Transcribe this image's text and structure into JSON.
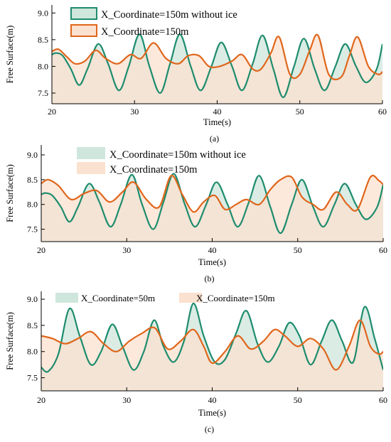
{
  "colors": {
    "green": "#1E8C6E",
    "orange": "#E0661C",
    "green_fill": "#CFE6DC",
    "orange_fill": "#FBE1CF",
    "overlap_fill": "#DAD8C8"
  },
  "chart_data": [
    {
      "type": "area",
      "panel_label": "(a)",
      "xlabel": "Time(s)",
      "ylabel": "Free Surface(m)",
      "xlim": [
        20,
        60
      ],
      "ylim": [
        7.3,
        9.15
      ],
      "xticks": [
        20,
        30,
        40,
        50,
        60
      ],
      "yticks": [
        7.5,
        8.0,
        8.5,
        9.0
      ],
      "xtick_labels": [
        "20",
        "30",
        "40",
        "50",
        "60"
      ],
      "ytick_labels": [
        "7.5",
        "8.0",
        "8.5",
        "9.0"
      ],
      "grid": false,
      "legend_position": "top-left",
      "series": [
        {
          "name": "X_Coordinate=150m without ice",
          "color": "#1E8C6E",
          "fill": "#CFE6DC",
          "x": [
            20,
            20.5,
            21.3,
            22.3,
            23.3,
            24.3,
            25.6,
            26.8,
            28.1,
            29.3,
            30.6,
            31.8,
            33.1,
            34.3,
            35.5,
            36.8,
            38.0,
            39.3,
            40.5,
            41.8,
            43.0,
            44.3,
            45.5,
            46.8,
            48.0,
            49.3,
            50.5,
            51.8,
            53.0,
            54.3,
            55.5,
            56.8,
            58.0,
            59.3,
            60
          ],
          "y": [
            8.22,
            8.25,
            8.2,
            7.95,
            7.65,
            7.95,
            8.42,
            8.05,
            7.55,
            8.0,
            8.6,
            8.0,
            7.5,
            8.05,
            8.6,
            8.0,
            7.55,
            8.0,
            8.45,
            8.0,
            7.55,
            8.05,
            8.58,
            7.95,
            7.42,
            8.0,
            8.52,
            7.95,
            7.55,
            8.0,
            8.42,
            8.0,
            7.7,
            7.95,
            8.42
          ]
        },
        {
          "name": "X_Coordinate=150m",
          "color": "#E0661C",
          "fill": "#FBE1CF",
          "x": [
            20,
            20.8,
            21.8,
            22.8,
            24.0,
            25.3,
            26.5,
            28.0,
            29.5,
            30.8,
            32.3,
            33.8,
            35.3,
            36.5,
            37.8,
            39.0,
            40.3,
            41.8,
            43.0,
            44.3,
            45.3,
            46.5,
            47.5,
            48.8,
            50.0,
            51.2,
            52.2,
            53.5,
            55.0,
            56.0,
            57.0,
            58.3,
            59.5,
            60
          ],
          "y": [
            8.28,
            8.32,
            8.18,
            8.05,
            8.1,
            8.3,
            8.15,
            8.05,
            8.22,
            8.15,
            8.44,
            8.15,
            8.05,
            8.2,
            8.2,
            8.0,
            8.0,
            8.1,
            8.22,
            7.95,
            7.95,
            8.25,
            8.55,
            7.85,
            7.85,
            8.3,
            8.58,
            7.85,
            7.8,
            8.2,
            8.55,
            8.0,
            7.85,
            7.9
          ]
        }
      ]
    },
    {
      "type": "area",
      "panel_label": "(b)",
      "xlabel": "Time(s)",
      "ylabel": "Free Surface(m)",
      "xlim": [
        20,
        60
      ],
      "ylim": [
        7.25,
        9.2
      ],
      "xticks": [
        20,
        30,
        40,
        50,
        60
      ],
      "yticks": [
        7.5,
        8.0,
        8.5,
        9.0
      ],
      "xtick_labels": [
        "20",
        "30",
        "40",
        "50",
        "60"
      ],
      "ytick_labels": [
        "7.5",
        "8.0",
        "8.5",
        "9.0"
      ],
      "grid": false,
      "legend_position": "top-center",
      "series": [
        {
          "name": "X_Coordinate=150m without ice",
          "color": "#1E8C6E",
          "fill": "#CFE6DC",
          "x": [
            20,
            20.5,
            21.3,
            22.3,
            23.3,
            24.3,
            25.6,
            26.8,
            28.1,
            29.3,
            30.6,
            31.8,
            33.1,
            34.3,
            35.5,
            36.8,
            38.0,
            39.3,
            40.5,
            41.8,
            43.0,
            44.3,
            45.5,
            46.8,
            48.0,
            49.3,
            50.5,
            51.8,
            53.0,
            54.3,
            55.5,
            56.8,
            58.0,
            59.3,
            60
          ],
          "y": [
            8.2,
            8.23,
            8.18,
            7.95,
            7.65,
            7.95,
            8.42,
            8.05,
            7.55,
            8.0,
            8.6,
            8.0,
            7.5,
            8.05,
            8.62,
            8.0,
            7.55,
            8.0,
            8.45,
            8.0,
            7.55,
            8.05,
            8.58,
            7.95,
            7.42,
            8.0,
            8.5,
            7.95,
            7.55,
            8.0,
            8.42,
            8.0,
            7.7,
            7.95,
            8.4
          ]
        },
        {
          "name": "X_Coordinate=150m",
          "color": "#E0661C",
          "fill": "#FBE1CF",
          "x": [
            20,
            20.8,
            22.0,
            23.5,
            25.0,
            26.5,
            28.0,
            29.5,
            30.8,
            32.3,
            33.8,
            35.2,
            36.5,
            37.8,
            39.0,
            40.3,
            41.5,
            42.8,
            44.0,
            45.5,
            46.8,
            48.0,
            49.3,
            50.5,
            51.8,
            53.0,
            54.5,
            55.8,
            57.0,
            58.5,
            59.5,
            60
          ],
          "y": [
            8.42,
            8.5,
            8.38,
            8.1,
            8.22,
            8.28,
            8.05,
            8.25,
            8.45,
            8.1,
            7.95,
            8.58,
            8.2,
            7.85,
            8.05,
            8.18,
            7.9,
            8.0,
            8.1,
            8.0,
            8.3,
            8.5,
            8.55,
            8.15,
            8.0,
            7.9,
            8.25,
            8.0,
            7.9,
            8.55,
            8.48,
            8.4
          ]
        }
      ]
    },
    {
      "type": "area",
      "panel_label": "(c)",
      "xlabel": "Time(s)",
      "ylabel": "Free Surface(m)",
      "xlim": [
        20,
        60
      ],
      "ylim": [
        7.25,
        9.15
      ],
      "xticks": [
        20,
        30,
        40,
        50,
        60
      ],
      "yticks": [
        7.5,
        8.0,
        8.5,
        9.0
      ],
      "xtick_labels": [
        "20",
        "30",
        "40",
        "50",
        "60"
      ],
      "ytick_labels": [
        "7.5",
        "8.0",
        "8.5",
        "9.0"
      ],
      "grid": false,
      "legend_position": "top",
      "series": [
        {
          "name": "X_Coordinate=50m",
          "color": "#1E8C6E",
          "fill": "#CFE6DC",
          "x": [
            20,
            20.8,
            22.0,
            23.3,
            24.5,
            25.8,
            27.0,
            28.3,
            29.5,
            30.8,
            32.0,
            33.2,
            34.3,
            35.5,
            36.7,
            37.8,
            39.0,
            40.3,
            41.5,
            42.8,
            44.0,
            45.3,
            46.5,
            47.8,
            49.0,
            50.2,
            51.5,
            52.8,
            54.0,
            55.2,
            56.5,
            57.8,
            59.0,
            60
          ],
          "y": [
            7.7,
            7.62,
            7.95,
            8.82,
            8.3,
            7.75,
            8.0,
            8.52,
            8.1,
            7.65,
            8.0,
            8.6,
            8.1,
            7.8,
            8.2,
            8.92,
            8.3,
            7.8,
            7.85,
            8.35,
            8.78,
            8.15,
            7.8,
            8.1,
            8.55,
            8.3,
            7.75,
            8.2,
            8.6,
            8.2,
            7.8,
            8.85,
            8.25,
            7.65
          ]
        },
        {
          "name": "X_Coordinate=150m",
          "color": "#E0661C",
          "fill": "#FBE1CF",
          "x": [
            20,
            21.3,
            22.8,
            24.3,
            25.8,
            27.3,
            28.8,
            30.3,
            31.8,
            33.3,
            34.8,
            36.3,
            37.8,
            39.0,
            40.0,
            41.5,
            43.0,
            44.5,
            46.0,
            47.3,
            48.5,
            50.0,
            51.5,
            53.0,
            54.5,
            56.0,
            57.3,
            58.5,
            59.5,
            60
          ],
          "y": [
            8.3,
            8.25,
            8.15,
            8.25,
            8.38,
            8.15,
            8.0,
            8.2,
            8.35,
            8.45,
            8.05,
            8.2,
            8.42,
            8.1,
            7.78,
            8.0,
            8.3,
            8.05,
            8.2,
            8.42,
            8.3,
            8.1,
            8.25,
            8.05,
            7.65,
            8.1,
            8.6,
            8.1,
            7.95,
            8.0
          ]
        }
      ]
    }
  ]
}
